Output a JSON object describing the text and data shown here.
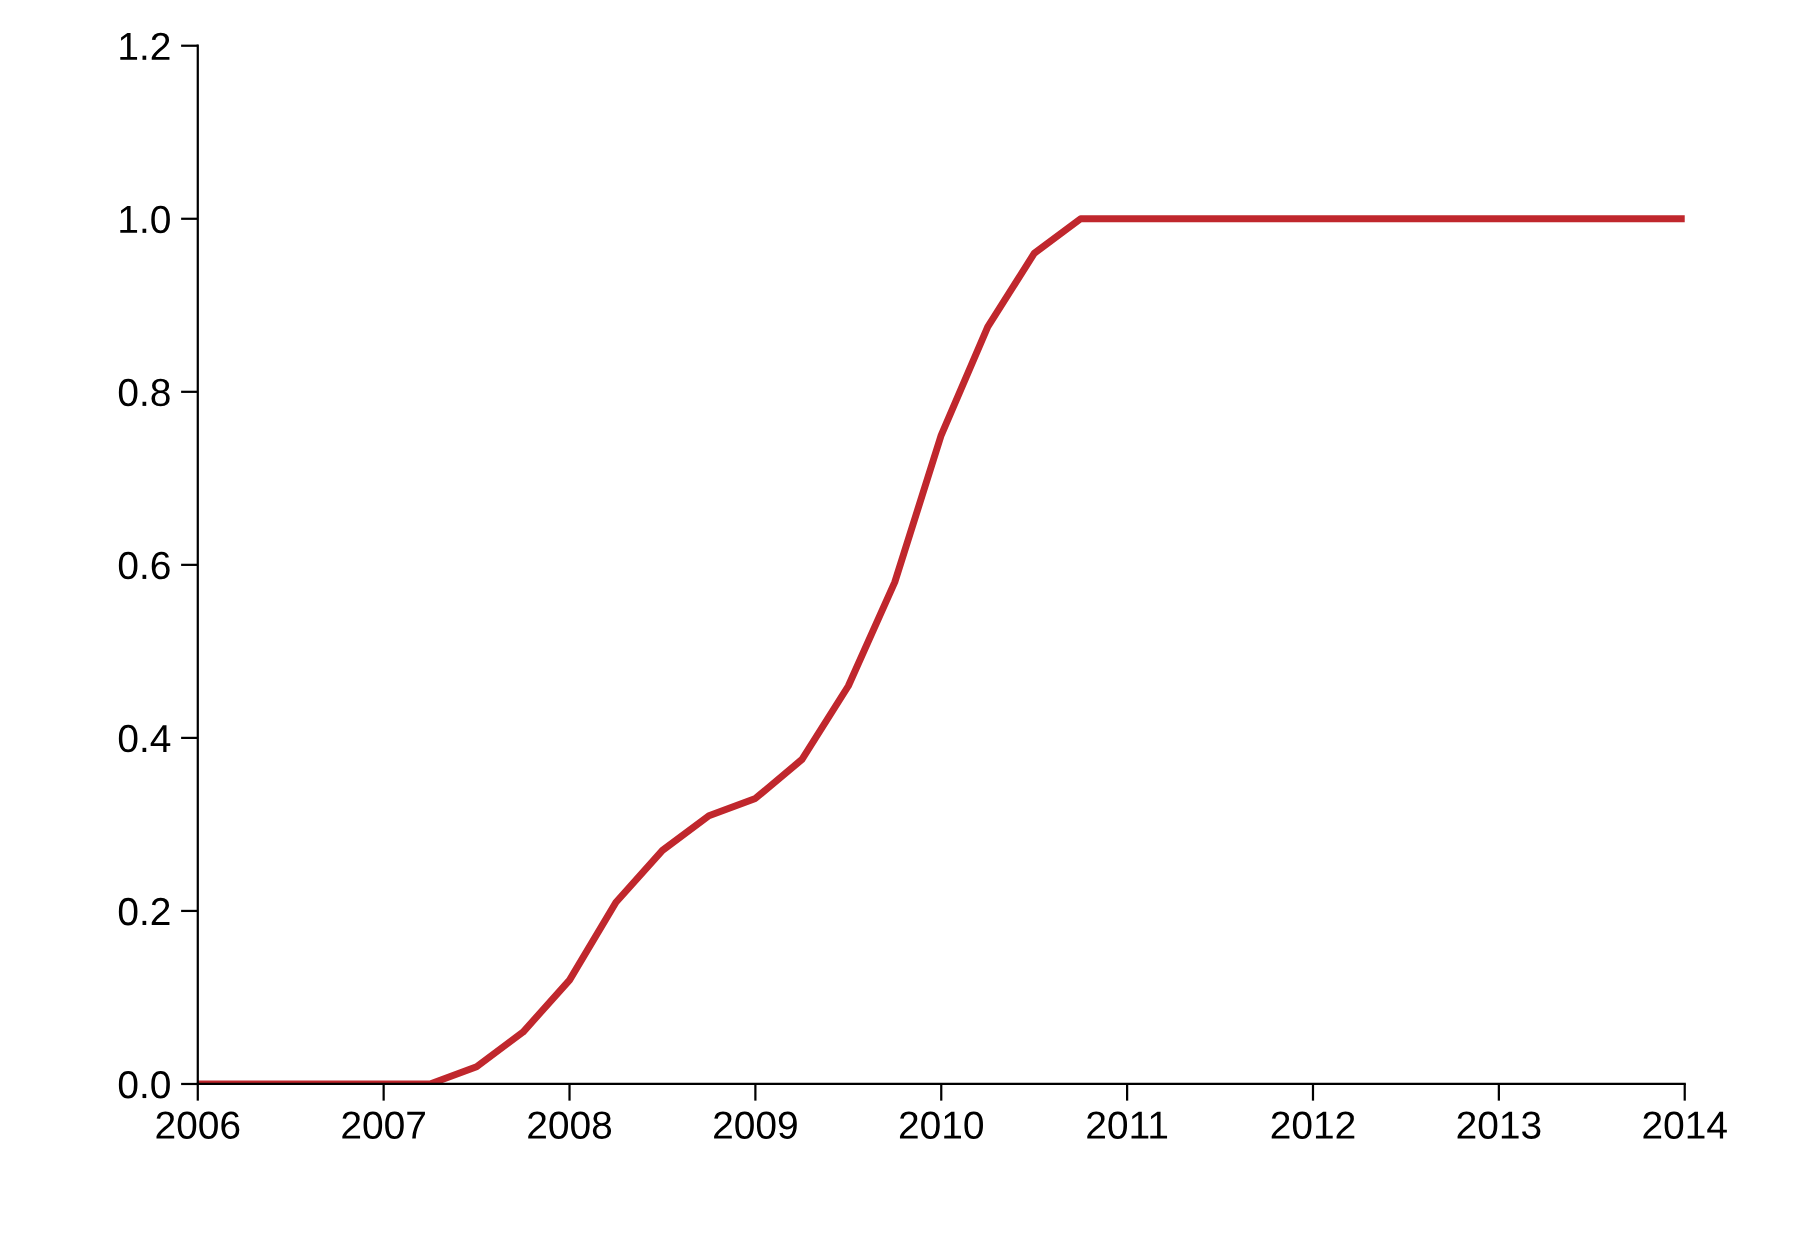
{
  "chart_data": {
    "type": "line",
    "x": [
      2006,
      2007.25,
      2007.5,
      2007.75,
      2008,
      2008.25,
      2008.5,
      2008.75,
      2009,
      2009.25,
      2009.5,
      2009.75,
      2010,
      2010.25,
      2010.5,
      2010.75,
      2014
    ],
    "series": [
      {
        "color": "#c0272d",
        "values": [
          0,
          0,
          0.02,
          0.06,
          0.12,
          0.21,
          0.27,
          0.31,
          0.33,
          0.375,
          0.46,
          0.58,
          0.75,
          0.875,
          0.96,
          1.0,
          1.0
        ]
      }
    ],
    "xlim": [
      2006,
      2014
    ],
    "xticks": [
      2006,
      2007,
      2008,
      2009,
      2010,
      2011,
      2012,
      2013,
      2014
    ],
    "ylim": [
      0,
      1.2
    ],
    "yticks": [
      {
        "value": 0,
        "label": "0.0"
      },
      {
        "value": 0.2,
        "label": "0.2"
      },
      {
        "value": 0.4,
        "label": "0.4"
      },
      {
        "value": 0.6,
        "label": "0.6"
      },
      {
        "value": 0.8,
        "label": "0.8"
      },
      {
        "value": 1.0,
        "label": "1.0"
      },
      {
        "value": 1.2,
        "label": "1.2"
      }
    ],
    "grid": false,
    "legend": false,
    "marker": "none",
    "line_style": "solid"
  }
}
